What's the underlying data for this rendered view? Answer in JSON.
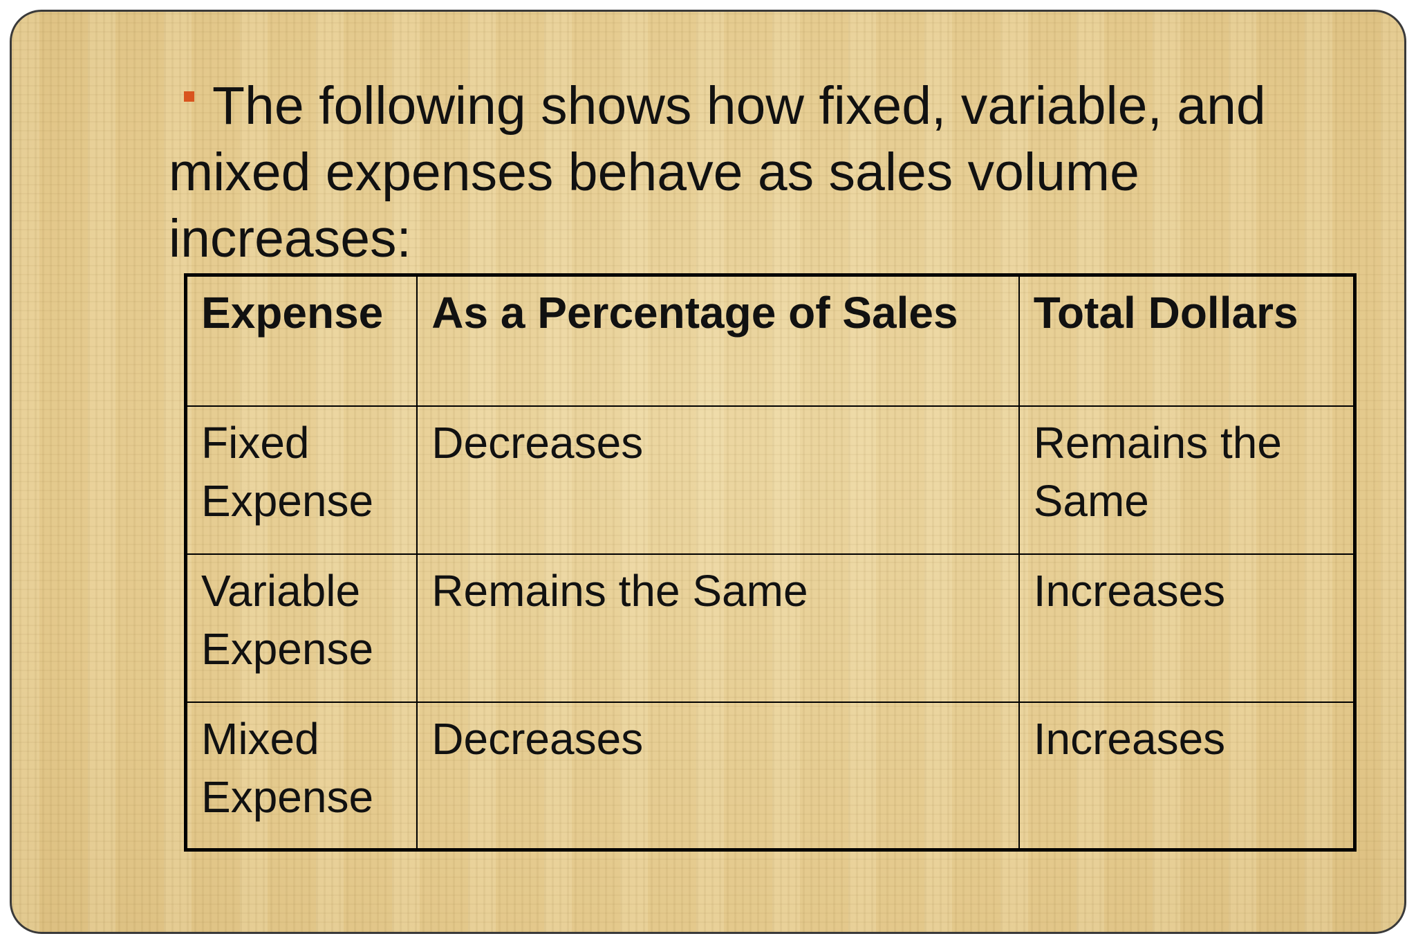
{
  "slide": {
    "intro_text": "The following shows how fixed, variable, and mixed expenses behave as sales volume increases:",
    "bullet_icon": "square-bullet-icon",
    "accent_color": "#d9541e"
  },
  "table": {
    "headers": [
      "Expense",
      "As a Percentage of Sales",
      "Total Dollars"
    ],
    "rows": [
      [
        "Fixed Expense",
        "Decreases",
        "Remains the Same"
      ],
      [
        "Variable Expense",
        "Remains the Same",
        "Increases"
      ],
      [
        "Mixed Expense",
        "Decreases",
        "Increases"
      ]
    ]
  }
}
